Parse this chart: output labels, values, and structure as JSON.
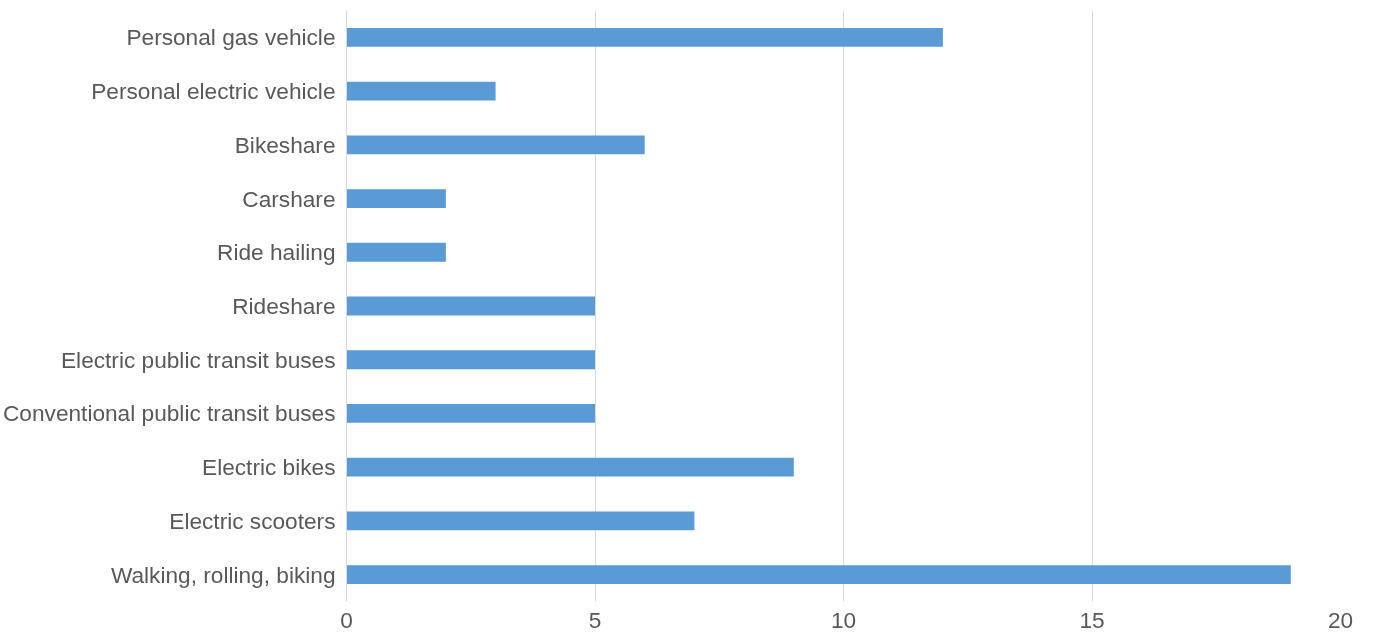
{
  "chart_data": {
    "type": "bar",
    "orientation": "horizontal",
    "categories": [
      "Personal gas vehicle",
      "Personal electric vehicle",
      "Bikeshare",
      "Carshare",
      "Ride hailing",
      "Rideshare",
      "Electric public transit buses",
      "Conventional public transit buses",
      "Electric bikes",
      "Electric scooters",
      "Walking, rolling, biking"
    ],
    "values": [
      12,
      3,
      6,
      2,
      2,
      5,
      5,
      5,
      9,
      7,
      19
    ],
    "color": "#5b9bd5",
    "xlim": [
      0,
      20
    ],
    "xticks": [
      0,
      5,
      10,
      15,
      20
    ],
    "grid": "x"
  }
}
